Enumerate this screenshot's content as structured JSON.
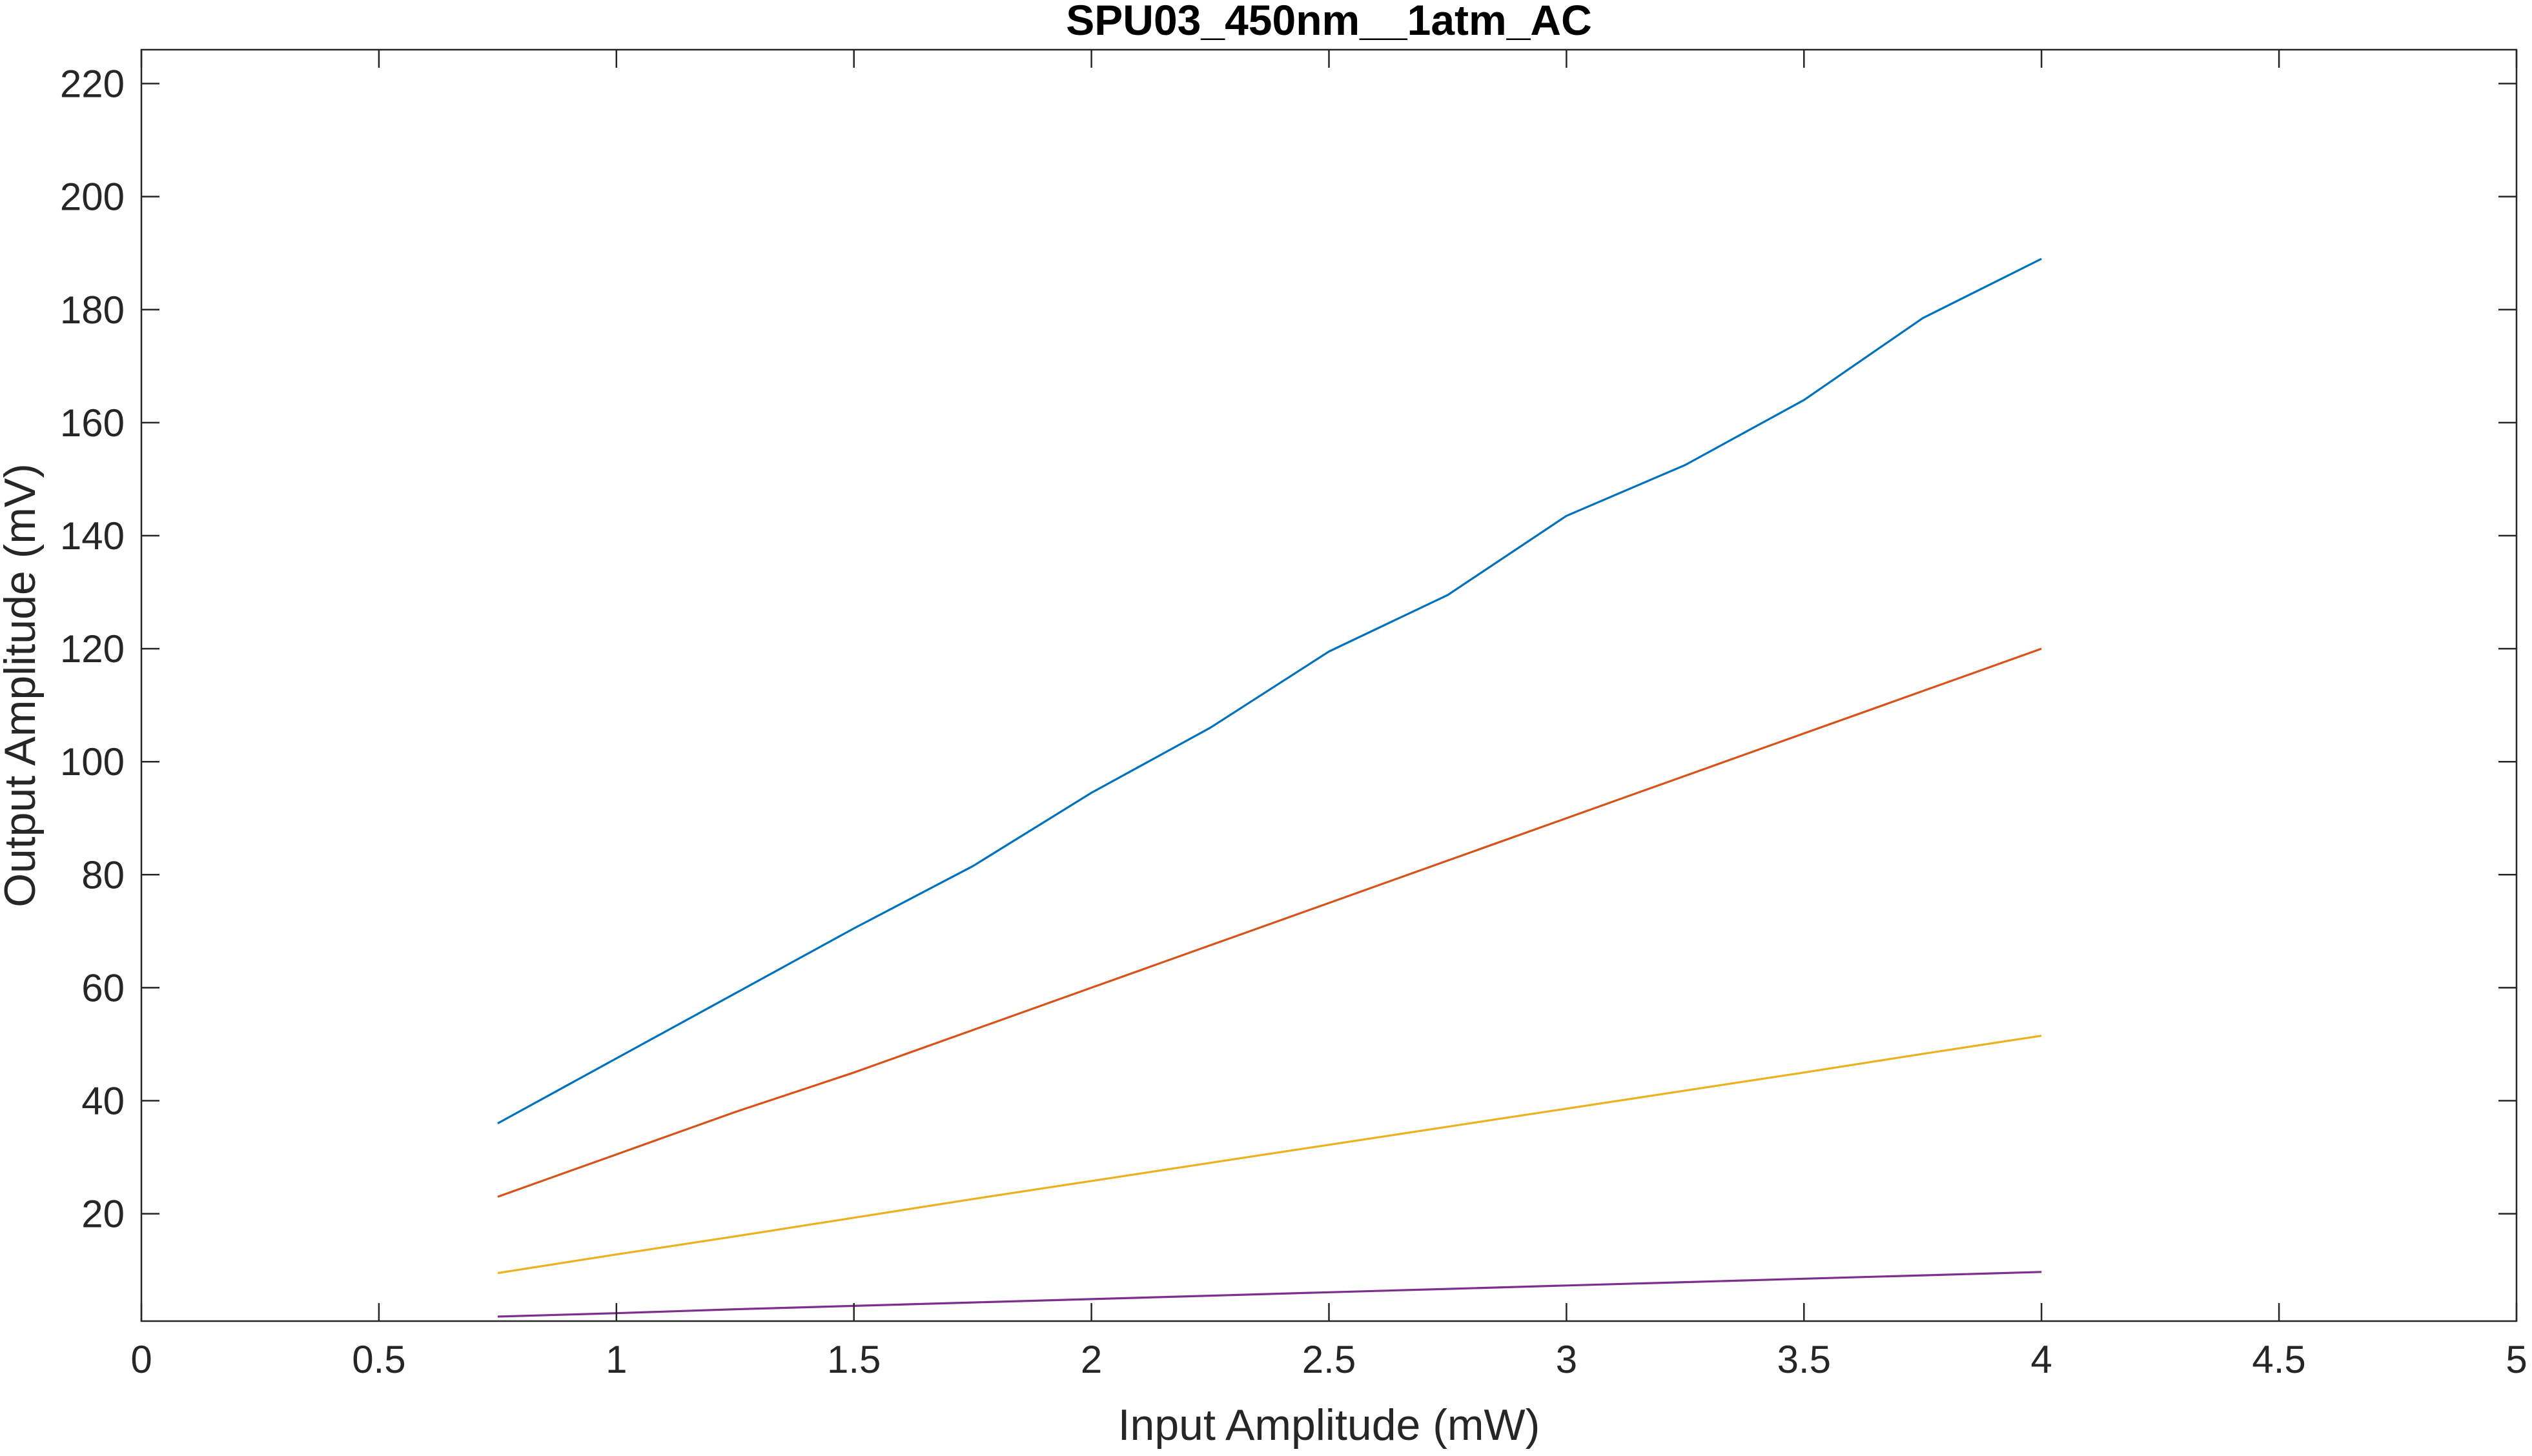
{
  "chart_data": {
    "type": "line",
    "title": "SPU03_450nm__1atm_AC",
    "xlabel": "Input Amplitude (mW)",
    "ylabel": "Output Amplitude (mV)",
    "xlim": [
      0,
      5
    ],
    "ylim": [
      1,
      226
    ],
    "xticks": [
      0,
      0.5,
      1,
      1.5,
      2,
      2.5,
      3,
      3.5,
      4,
      4.5,
      5
    ],
    "xtick_labels": [
      "0",
      "0.5",
      "1",
      "1.5",
      "2",
      "2.5",
      "3",
      "3.5",
      "4",
      "4.5",
      "5"
    ],
    "yticks": [
      20,
      40,
      60,
      80,
      100,
      120,
      140,
      160,
      180,
      200,
      220
    ],
    "ytick_labels": [
      "20",
      "40",
      "60",
      "80",
      "100",
      "120",
      "140",
      "160",
      "180",
      "200",
      "220"
    ],
    "grid": false,
    "legend": "none",
    "x": [
      0.75,
      1,
      1.25,
      1.5,
      1.75,
      2,
      2.25,
      2.5,
      2.75,
      3,
      3.25,
      3.5,
      3.75,
      4
    ],
    "series": [
      {
        "color": "#0072BD",
        "values": [
          36,
          47.5,
          59,
          70.5,
          81.5,
          94.5,
          106,
          119.5,
          129.5,
          143.5,
          152.5,
          164,
          178.5,
          189
        ]
      },
      {
        "color": "#D95319",
        "values": [
          23,
          30.5,
          38,
          45,
          52.5,
          60,
          67.5,
          75,
          82.5,
          90,
          97.5,
          105,
          112.5,
          120
        ]
      },
      {
        "color": "#EDB120",
        "values": [
          9.5,
          12.8,
          16,
          19.3,
          22.6,
          25.8,
          29,
          32.2,
          35.4,
          38.6,
          41.8,
          45,
          48.3,
          51.5
        ]
      },
      {
        "color": "#7E2F8E",
        "values": [
          1.8,
          2.4,
          3.1,
          3.7,
          4.3,
          4.9,
          5.5,
          6.1,
          6.7,
          7.3,
          7.9,
          8.5,
          9.1,
          9.7
        ]
      }
    ]
  }
}
